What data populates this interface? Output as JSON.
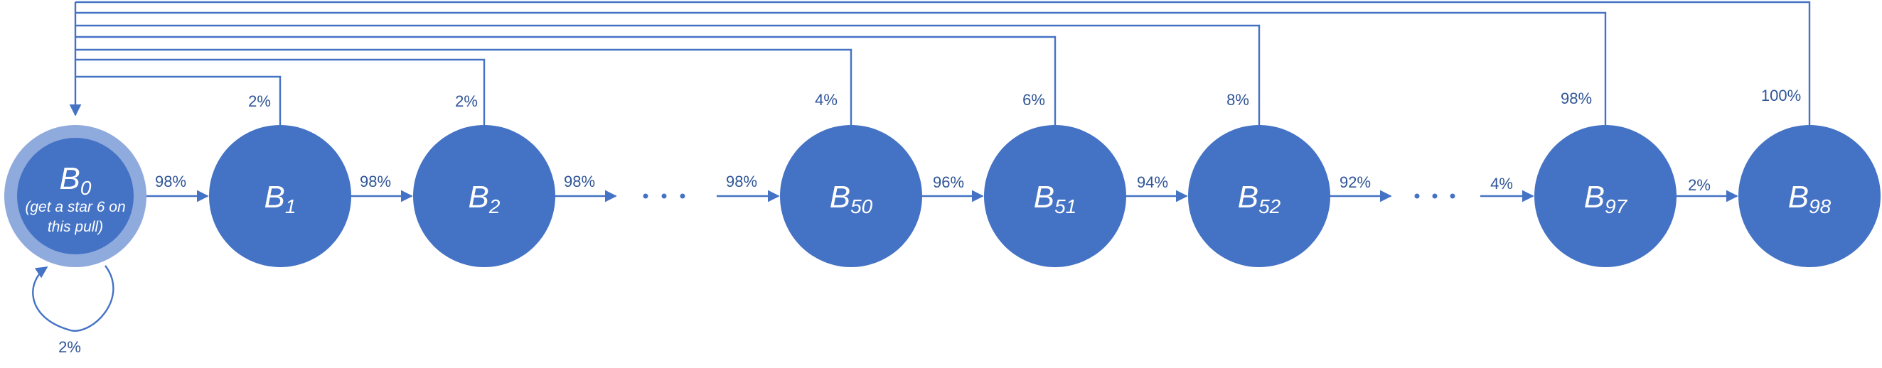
{
  "nodes": [
    {
      "id": "B0",
      "main": "B",
      "sub": "0",
      "note_line1": "(get a star 6 on",
      "note_line2": "this pull)"
    },
    {
      "id": "B1",
      "main": "B",
      "sub": "1"
    },
    {
      "id": "B2",
      "main": "B",
      "sub": "2"
    },
    {
      "id": "B50",
      "main": "B",
      "sub": "50"
    },
    {
      "id": "B51",
      "main": "B",
      "sub": "51"
    },
    {
      "id": "B52",
      "main": "B",
      "sub": "52"
    },
    {
      "id": "B97",
      "main": "B",
      "sub": "97"
    },
    {
      "id": "B98",
      "main": "B",
      "sub": "98"
    }
  ],
  "forward_edges": [
    {
      "from": "B0",
      "to": "B1",
      "label": "98%"
    },
    {
      "from": "B1",
      "to": "B2",
      "label": "98%"
    },
    {
      "from": "B2",
      "to": "ellipsis-1",
      "label": "98%"
    },
    {
      "from": "ellipsis-1",
      "to": "B50",
      "label": "98%"
    },
    {
      "from": "B50",
      "to": "B51",
      "label": "96%"
    },
    {
      "from": "B51",
      "to": "B52",
      "label": "94%"
    },
    {
      "from": "B52",
      "to": "ellipsis-2",
      "label": "92%"
    },
    {
      "from": "ellipsis-2",
      "to": "B97",
      "label": "4%"
    },
    {
      "from": "B97",
      "to": "B98",
      "label": "2%"
    }
  ],
  "return_edges": [
    {
      "from": "B1",
      "to": "B0",
      "label": "2%"
    },
    {
      "from": "B2",
      "to": "B0",
      "label": "2%"
    },
    {
      "from": "B50",
      "to": "B0",
      "label": "4%"
    },
    {
      "from": "B51",
      "to": "B0",
      "label": "6%"
    },
    {
      "from": "B52",
      "to": "B0",
      "label": "8%"
    },
    {
      "from": "B97",
      "to": "B0",
      "label": "98%"
    },
    {
      "from": "B98",
      "to": "B0",
      "label": "100%"
    }
  ],
  "self_loop": {
    "node": "B0",
    "label": "2%"
  },
  "ellipsis": [
    {
      "id": "ellipsis-1"
    },
    {
      "id": "ellipsis-2"
    }
  ],
  "colors": {
    "node": "#4472C4",
    "ring": "#8FAADC",
    "edge": "#4472C4",
    "label": "#2F5597"
  }
}
